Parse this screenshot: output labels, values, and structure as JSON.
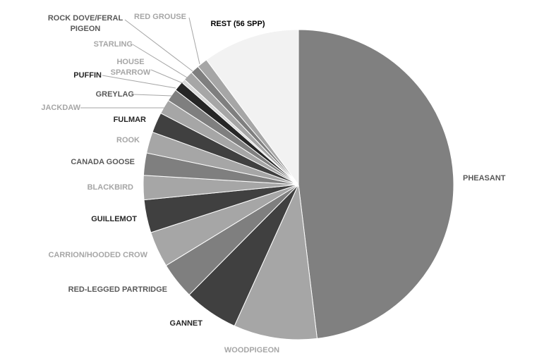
{
  "chart_data": {
    "type": "pie",
    "title": "",
    "legend": "none (labels placed beside slices)",
    "slices": [
      {
        "label": "PHEASANT",
        "value": 47.6,
        "color": "#808080",
        "label_color": "#595959"
      },
      {
        "label": "WOODPIGEON",
        "value": 8.6,
        "color": "#a6a6a6",
        "label_color": "#a6a6a6"
      },
      {
        "label": "GANNET",
        "value": 5.6,
        "color": "#404040",
        "label_color": "#262626"
      },
      {
        "label": "RED-LEGGED PARTRIDGE",
        "value": 3.8,
        "color": "#7f7f7f",
        "label_color": "#595959"
      },
      {
        "label": "CARRION/HOODED CROW",
        "value": 3.7,
        "color": "#a6a6a6",
        "label_color": "#a6a6a6"
      },
      {
        "label": "GUILLEMOT",
        "value": 3.4,
        "color": "#404040",
        "label_color": "#262626"
      },
      {
        "label": "BLACKBIRD",
        "value": 2.5,
        "color": "#a6a6a6",
        "label_color": "#a6a6a6"
      },
      {
        "label": "CANADA GOOSE",
        "value": 2.3,
        "color": "#7f7f7f",
        "label_color": "#595959"
      },
      {
        "label": "ROOK",
        "value": 2.2,
        "color": "#a6a6a6",
        "label_color": "#a6a6a6"
      },
      {
        "label": "FULMAR",
        "value": 2.1,
        "color": "#404040",
        "label_color": "#262626"
      },
      {
        "label": "JACKDAW",
        "value": 1.5,
        "color": "#a6a6a6",
        "label_color": "#a6a6a6"
      },
      {
        "label": "GREYLAG",
        "value": 1.3,
        "color": "#7f7f7f",
        "label_color": "#595959"
      },
      {
        "label": "PUFFIN",
        "value": 1.0,
        "color": "#262626",
        "label_color": "#262626"
      },
      {
        "label": "HOUSE SPARROW",
        "value": 0.4,
        "color": "#d9d9d9",
        "label_color": "#a6a6a6"
      },
      {
        "label": "STARLING",
        "value": 1.0,
        "color": "#a6a6a6",
        "label_color": "#a6a6a6"
      },
      {
        "label": "ROCK DOVE/FERAL PIGEON",
        "value": 0.9,
        "color": "#7f7f7f",
        "label_color": "#595959"
      },
      {
        "label": "RED GROUSE",
        "value": 1.1,
        "color": "#a6a6a6",
        "label_color": "#a6a6a6"
      },
      {
        "label": "REST (56 SPP)",
        "value": 10.0,
        "color": "#f2f2f2",
        "label_color": "#000000"
      }
    ]
  }
}
